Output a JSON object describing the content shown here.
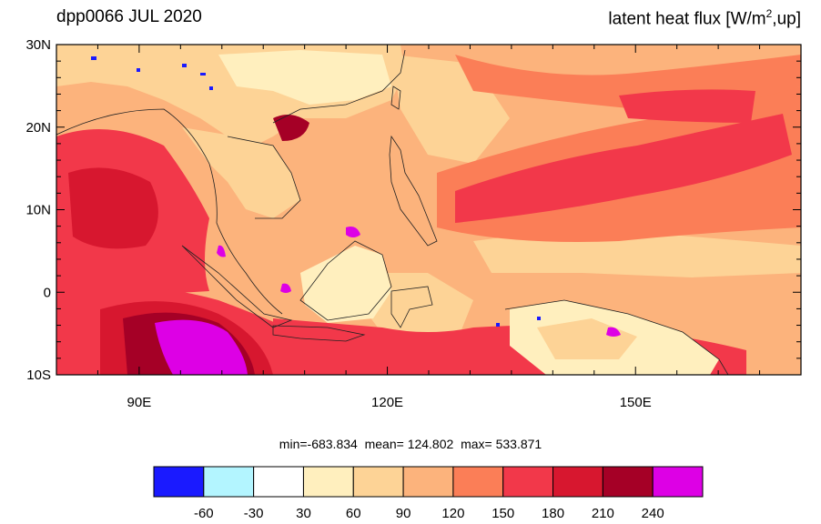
{
  "title_left": "dpp0066 JUL 2020",
  "title_right": {
    "prefix": "latent heat flux [W/m",
    "superscript": "2",
    "suffix": ",up]"
  },
  "stats": {
    "min": "-683.834",
    "mean": "124.802",
    "max": "533.871"
  },
  "map": {
    "lon_range": [
      80,
      170
    ],
    "lat_range": [
      -10,
      30
    ],
    "lon_ticks": [
      {
        "value": 90,
        "label": "90E"
      },
      {
        "value": 120,
        "label": "120E"
      },
      {
        "value": 150,
        "label": "150E"
      }
    ],
    "lat_ticks": [
      {
        "value": 30,
        "label": "30N"
      },
      {
        "value": 20,
        "label": "20N"
      },
      {
        "value": 10,
        "label": "10N"
      },
      {
        "value": 0,
        "label": "0"
      },
      {
        "value": -10,
        "label": "10S"
      }
    ]
  },
  "colorbar": {
    "colors": [
      "#1a1aff",
      "#b3f5ff",
      "#ffffff",
      "#ffefbe",
      "#fdd396",
      "#fcb37c",
      "#fb7e57",
      "#f2384a",
      "#d7172f",
      "#a50026",
      "#dd00e5"
    ],
    "labels": [
      "-60",
      "-30",
      "30",
      "60",
      "90",
      "120",
      "150",
      "180",
      "210",
      "240"
    ]
  }
}
